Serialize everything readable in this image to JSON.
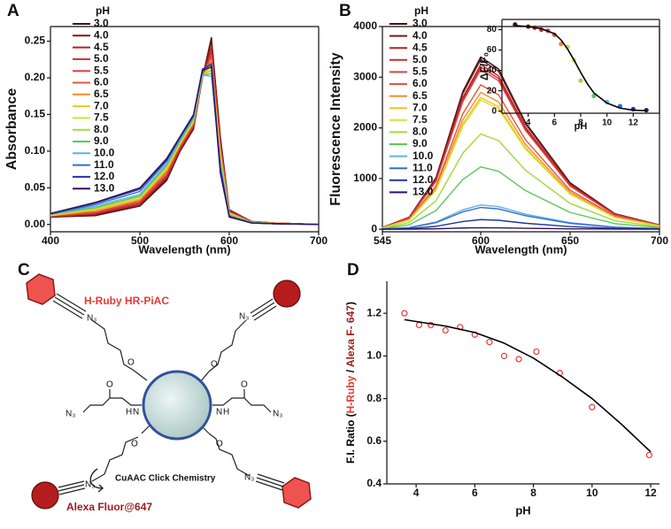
{
  "panels": [
    "A",
    "B",
    "C",
    "D"
  ],
  "chart_data": [
    {
      "type": "line",
      "x_label": "Wavelength (nm)",
      "y_label": "Absorbance",
      "legend_title": "pH",
      "x": [
        400,
        450,
        500,
        530,
        545,
        560,
        570,
        580,
        590,
        600,
        625,
        650,
        700
      ],
      "xlim": [
        400,
        700
      ],
      "xticks": [
        400,
        500,
        600,
        700
      ],
      "ylim": [
        -0.01,
        0.27
      ],
      "yticks": [
        {
          "value": 0,
          "label": "0.00"
        },
        {
          "value": 0.05,
          "label": "0.05"
        },
        {
          "value": 0.1,
          "label": "0.10"
        },
        {
          "value": 0.15,
          "label": "0.15"
        },
        {
          "value": 0.2,
          "label": "0.20"
        },
        {
          "value": 0.25,
          "label": "0.25"
        }
      ],
      "series": [
        {
          "name": "3.0",
          "color": "#3a1212",
          "values": [
            0.01,
            0.012,
            0.025,
            0.06,
            0.1,
            0.13,
            0.2,
            0.255,
            0.12,
            0.02,
            0.004,
            0.002,
            0
          ]
        },
        {
          "name": "4.0",
          "color": "#7a1a1a",
          "values": [
            0.01,
            0.013,
            0.026,
            0.062,
            0.101,
            0.131,
            0.2,
            0.25,
            0.116,
            0.019,
            0.004,
            0.002,
            0
          ]
        },
        {
          "name": "4.5",
          "color": "#b22222",
          "values": [
            0.011,
            0.014,
            0.028,
            0.064,
            0.103,
            0.133,
            0.2,
            0.242,
            0.113,
            0.019,
            0.004,
            0.002,
            0
          ]
        },
        {
          "name": "5.0",
          "color": "#cc2e2e",
          "values": [
            0.011,
            0.015,
            0.029,
            0.066,
            0.104,
            0.134,
            0.201,
            0.236,
            0.11,
            0.018,
            0.004,
            0.002,
            0
          ]
        },
        {
          "name": "5.5",
          "color": "#de4040",
          "values": [
            0.011,
            0.016,
            0.031,
            0.068,
            0.106,
            0.136,
            0.201,
            0.232,
            0.106,
            0.017,
            0.003,
            0.002,
            0
          ]
        },
        {
          "name": "6.0",
          "color": "#e4553a",
          "values": [
            0.012,
            0.017,
            0.032,
            0.071,
            0.107,
            0.137,
            0.201,
            0.228,
            0.103,
            0.016,
            0.003,
            0.002,
            0
          ]
        },
        {
          "name": "6.5",
          "color": "#f08a32",
          "values": [
            0.012,
            0.019,
            0.034,
            0.073,
            0.109,
            0.139,
            0.202,
            0.223,
            0.099,
            0.016,
            0.003,
            0.002,
            0
          ]
        },
        {
          "name": "7.0",
          "color": "#f2c420",
          "values": [
            0.012,
            0.02,
            0.035,
            0.075,
            0.11,
            0.14,
            0.202,
            0.218,
            0.096,
            0.015,
            0.003,
            0.001,
            0
          ]
        },
        {
          "name": "7.5",
          "color": "#d8e030",
          "values": [
            0.013,
            0.021,
            0.036,
            0.077,
            0.111,
            0.141,
            0.202,
            0.214,
            0.092,
            0.014,
            0.003,
            0.001,
            0
          ]
        },
        {
          "name": "8.0",
          "color": "#a2d840",
          "values": [
            0.013,
            0.022,
            0.038,
            0.079,
            0.113,
            0.143,
            0.203,
            0.21,
            0.089,
            0.013,
            0.003,
            0.001,
            0
          ]
        },
        {
          "name": "9.0",
          "color": "#5cc85c",
          "values": [
            0.014,
            0.023,
            0.039,
            0.081,
            0.114,
            0.144,
            0.203,
            0.206,
            0.085,
            0.013,
            0.003,
            0.001,
            0
          ]
        },
        {
          "name": "10.0",
          "color": "#5fb2e6",
          "values": [
            0.014,
            0.025,
            0.041,
            0.083,
            0.116,
            0.146,
            0.204,
            0.202,
            0.082,
            0.012,
            0.002,
            0.001,
            0
          ]
        },
        {
          "name": "11.0",
          "color": "#3070d0",
          "values": [
            0.014,
            0.027,
            0.045,
            0.086,
            0.118,
            0.147,
            0.21,
            0.22,
            0.078,
            0.011,
            0.002,
            0.001,
            0
          ]
        },
        {
          "name": "12.0",
          "color": "#2232a0",
          "values": [
            0.015,
            0.029,
            0.048,
            0.088,
            0.119,
            0.149,
            0.212,
            0.218,
            0.075,
            0.011,
            0.002,
            0.001,
            0
          ]
        },
        {
          "name": "13.0",
          "color": "#33115e",
          "values": [
            0.015,
            0.03,
            0.05,
            0.09,
            0.12,
            0.15,
            0.21,
            0.215,
            0.07,
            0.01,
            0.002,
            0.001,
            0
          ]
        }
      ]
    },
    {
      "type": "line",
      "x_label": "Wavelength (nm)",
      "y_label": "Fluorescence Intensity",
      "legend_title": "pH",
      "x": [
        545,
        560,
        575,
        590,
        600,
        610,
        625,
        650,
        675,
        700
      ],
      "xlim": [
        545,
        700
      ],
      "xticks": [
        545,
        600,
        650,
        700
      ],
      "ylim": [
        -50,
        4000
      ],
      "yticks": [
        0,
        1000,
        2000,
        3000,
        4000
      ],
      "series": [
        {
          "name": "3.0",
          "color": "#3a1212",
          "values": [
            34,
            238,
            1020,
            2720,
            3400,
            3162,
            2108,
            918,
            306,
            85
          ]
        },
        {
          "name": "4.0",
          "color": "#7a1a1a",
          "values": [
            34,
            235,
            1005,
            2680,
            3350,
            3116,
            2077,
            905,
            302,
            84
          ]
        },
        {
          "name": "4.5",
          "color": "#b22222",
          "values": [
            33,
            228,
            975,
            2600,
            3250,
            3023,
            2015,
            878,
            293,
            81
          ]
        },
        {
          "name": "5.0",
          "color": "#cc2e2e",
          "values": [
            32,
            224,
            960,
            2560,
            3200,
            2976,
            1984,
            864,
            288,
            80
          ]
        },
        {
          "name": "5.5",
          "color": "#de4040",
          "values": [
            32,
            221,
            945,
            2520,
            3150,
            2930,
            1953,
            851,
            284,
            79
          ]
        },
        {
          "name": "6.0",
          "color": "#e4553a",
          "values": [
            29,
            200,
            855,
            2280,
            2850,
            2651,
            1767,
            770,
            257,
            71
          ]
        },
        {
          "name": "6.5",
          "color": "#f08a32",
          "values": [
            27,
            189,
            810,
            2160,
            2700,
            2511,
            1674,
            729,
            243,
            68
          ]
        },
        {
          "name": "7.0",
          "color": "#f2c420",
          "values": [
            26,
            182,
            780,
            2080,
            2600,
            2418,
            1612,
            702,
            234,
            65
          ]
        },
        {
          "name": "7.5",
          "color": "#d8e030",
          "values": [
            26,
            179,
            765,
            2040,
            2550,
            2372,
            1581,
            689,
            230,
            64
          ]
        },
        {
          "name": "8.0",
          "color": "#a2d840",
          "values": [
            19,
            132,
            564,
            1504,
            1880,
            1748,
            1166,
            508,
            169,
            47
          ]
        },
        {
          "name": "9.0",
          "color": "#5cc85c",
          "values": [
            12,
            86,
            369,
            984,
            1230,
            1144,
            763,
            332,
            111,
            31
          ]
        },
        {
          "name": "10.0",
          "color": "#5fb2e6",
          "values": [
            5,
            34,
            144,
            384,
            480,
            446,
            298,
            130,
            43,
            12
          ]
        },
        {
          "name": "11.0",
          "color": "#3070d0",
          "values": [
            4,
            30,
            129,
            344,
            430,
            400,
            267,
            116,
            39,
            11
          ]
        },
        {
          "name": "12.0",
          "color": "#2232a0",
          "values": [
            2,
            13,
            57,
            152,
            190,
            177,
            118,
            51,
            17,
            5
          ]
        },
        {
          "name": "13.0",
          "color": "#33115e",
          "values": [
            0,
            2,
            9,
            24,
            30,
            28,
            19,
            8,
            3,
            1
          ]
        }
      ]
    },
    {
      "type": "scatter",
      "x_label": "pH",
      "y_label": "ΔF/F₀",
      "xlim": [
        2,
        14
      ],
      "xticks": [
        4,
        6,
        8,
        10,
        12
      ],
      "ylim": [
        -2,
        90
      ],
      "yticks": [
        0,
        20,
        40,
        60,
        80
      ],
      "series": [
        {
          "mode": "markers",
          "x": [
            3,
            4,
            4.5,
            5,
            5.5,
            6,
            6.5,
            7,
            7.5,
            8,
            9,
            10,
            11,
            12,
            13
          ],
          "values": [
            85,
            83,
            82,
            80,
            79,
            75,
            66,
            63,
            50,
            30,
            15,
            9,
            5,
            2,
            1
          ],
          "colors": [
            "#3a1212",
            "#7a1a1a",
            "#b22222",
            "#cc2e2e",
            "#de4040",
            "#e4553a",
            "#f08a32",
            "#f2c420",
            "#d8e030",
            "#a2d840",
            "#5cc85c",
            "#5fb2e6",
            "#3070d0",
            "#2232a0",
            "#33115e"
          ]
        },
        {
          "mode": "line",
          "color": "#000000",
          "x": [
            3,
            4,
            5,
            6,
            6.5,
            7,
            7.5,
            8,
            8.5,
            9,
            10,
            11,
            12,
            13
          ],
          "values": [
            84,
            83,
            81,
            76,
            70,
            61,
            50,
            38,
            27,
            18,
            8,
            3,
            1,
            0.5
          ]
        }
      ]
    },
    {
      "type": "scatter",
      "x_label": "pH",
      "y_label_parts": [
        {
          "text": "F.I. Ratio (",
          "color": "#000000"
        },
        {
          "text": "H-Ruby",
          "color": "#e53935"
        },
        {
          "text": " / ",
          "color": "#000000"
        },
        {
          "text": "Alexa F- 647",
          "color": "#9e1b1b"
        },
        {
          "text": ")",
          "color": "#000000"
        }
      ],
      "xlim": [
        3,
        12.3
      ],
      "xticks": [
        4,
        6,
        8,
        10,
        12
      ],
      "ylim": [
        0.4,
        1.35
      ],
      "yticks": [
        0.4,
        0.6,
        0.8,
        {
          "value": 1,
          "label": "1.0"
        },
        1.2
      ],
      "series": [
        {
          "mode": "markers",
          "color": "#e53935",
          "x": [
            3.6,
            4.1,
            4.5,
            5,
            5.5,
            6,
            6.5,
            7,
            7.5,
            8.1,
            8.9,
            10,
            11.95
          ],
          "values": [
            1.2,
            1.145,
            1.145,
            1.12,
            1.135,
            1.1,
            1.065,
            1.0,
            0.985,
            1.02,
            0.92,
            0.76,
            0.535
          ]
        },
        {
          "mode": "line",
          "color": "#000000",
          "x": [
            3.6,
            5,
            6,
            7,
            8,
            9,
            10,
            11,
            12
          ],
          "values": [
            1.17,
            1.14,
            1.11,
            1.06,
            0.99,
            0.9,
            0.8,
            0.68,
            0.55
          ]
        }
      ]
    }
  ],
  "diagram": {
    "labels": [
      "H-Ruby HR-PiAC",
      "CuAAC Click Chemistry",
      "Alexa Fluor@647"
    ],
    "atoms": [
      "N₃",
      "N₃",
      "N₃",
      "N₃",
      "N₃",
      "N₃",
      "O",
      "O",
      "O",
      "O",
      "O",
      "O",
      "N",
      "H",
      "N",
      "H"
    ]
  }
}
